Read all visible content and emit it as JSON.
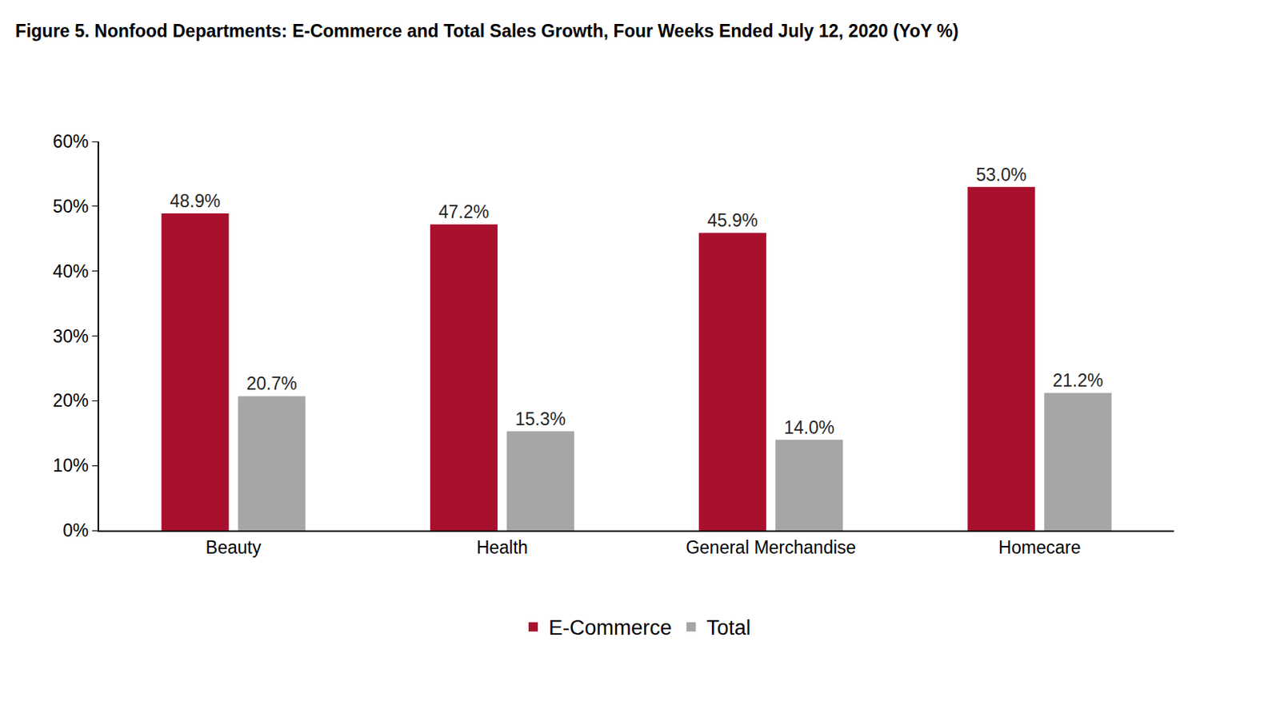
{
  "chart_data": {
    "type": "bar",
    "title": "Figure 5. Nonfood Departments: E-Commerce and Total Sales Growth, Four Weeks Ended July 12, 2020 (YoY %)",
    "categories": [
      "Beauty",
      "Health",
      "General Merchandise",
      "Homecare"
    ],
    "series": [
      {
        "name": "E-Commerce",
        "color": "#a8102d",
        "values": [
          48.9,
          47.2,
          45.9,
          53.0
        ],
        "value_labels": [
          "48.9%",
          "47.2%",
          "45.9%",
          "53.0%"
        ]
      },
      {
        "name": "Total",
        "color": "#a6a6a6",
        "values": [
          20.7,
          15.3,
          14.0,
          21.2
        ],
        "value_labels": [
          "20.7%",
          "15.3%",
          "14.0%",
          "21.2%"
        ]
      }
    ],
    "ylim": [
      0,
      60
    ],
    "yticks": [
      {
        "value": 0,
        "label": "0%"
      },
      {
        "value": 10,
        "label": "10%"
      },
      {
        "value": 20,
        "label": "20%"
      },
      {
        "value": 30,
        "label": "30%"
      },
      {
        "value": 40,
        "label": "40%"
      },
      {
        "value": 50,
        "label": "50%"
      },
      {
        "value": 60,
        "label": "60%"
      }
    ],
    "grid": false,
    "legend": "bottom",
    "data_labels": true
  }
}
